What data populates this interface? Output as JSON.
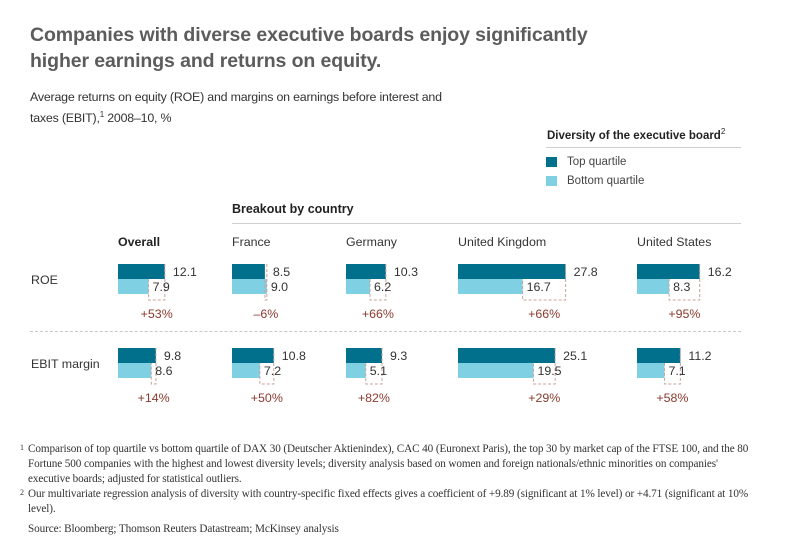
{
  "header": {
    "title": "Companies with diverse executive boards enjoy significantly higher earnings and returns on equity.",
    "subtitle_part1": "Average returns on equity (ROE) and margins on earnings before interest and taxes (EBIT),",
    "subtitle_sup": "1",
    "subtitle_part2": " 2008–10, %"
  },
  "legend": {
    "title": "Diversity of the executive board",
    "title_sup": "2",
    "items": [
      {
        "label": "Top quartile",
        "color": "#00708d"
      },
      {
        "label": "Bottom quartile",
        "color": "#7fd0e2"
      }
    ]
  },
  "breakout_title": "Breakout by country",
  "colors": {
    "top": "#00708d",
    "bottom": "#7fd0e2",
    "delta_text": "#8b3a2e",
    "delta_box": "#c9a39c",
    "value_text": "#333333"
  },
  "chart_data": {
    "type": "bar",
    "title": "Companies with diverse executive boards enjoy significantly higher earnings and returns on equity.",
    "subtitle": "Average returns on equity (ROE) and margins on earnings before interest and taxes (EBIT), 2008–10, %",
    "orientation": "horizontal",
    "categories": [
      "Overall",
      "France",
      "Germany",
      "United Kingdom",
      "United States"
    ],
    "metrics": [
      "ROE",
      "EBIT margin"
    ],
    "series": [
      {
        "name": "Top quartile",
        "metric": "ROE",
        "values": [
          12.1,
          8.5,
          10.3,
          27.8,
          16.2
        ]
      },
      {
        "name": "Bottom quartile",
        "metric": "ROE",
        "values": [
          7.9,
          9.0,
          6.2,
          16.7,
          8.3
        ]
      },
      {
        "name": "Top quartile",
        "metric": "EBIT margin",
        "values": [
          9.8,
          10.8,
          9.3,
          25.1,
          11.2
        ]
      },
      {
        "name": "Bottom quartile",
        "metric": "EBIT margin",
        "values": [
          8.6,
          7.2,
          5.1,
          19.5,
          7.1
        ]
      }
    ],
    "value_labels": {
      "ROE": {
        "top": [
          "12.1",
          "8.5",
          "10.3",
          "27.8",
          "16.2"
        ],
        "bottom": [
          "7.9",
          "9.0",
          "6.2",
          "16.7",
          "8.3"
        ]
      },
      "EBIT margin": {
        "top": [
          "9.8",
          "10.8",
          "9.3",
          "25.1",
          "11.2"
        ],
        "bottom": [
          "8.6",
          "7.2",
          "5.1",
          "19.5",
          "7.1"
        ]
      }
    },
    "differences": {
      "ROE": [
        "+53%",
        "–6%",
        "+66%",
        "+66%",
        "+95%"
      ],
      "EBIT margin": [
        "+14%",
        "+50%",
        "+82%",
        "+29%",
        "+58%"
      ]
    },
    "legend_position": "top-right",
    "grid": false
  },
  "columns": {
    "overall": "Overall",
    "france": "France",
    "germany": "Germany",
    "uk": "United Kingdom",
    "us": "United States"
  },
  "rows": {
    "roe": "ROE",
    "ebit": "EBIT margin"
  },
  "footnotes": [
    {
      "sup": "1",
      "text": "Comparison of top quartile vs bottom quartile of DAX 30 (Deutscher Aktienindex), CAC 40 (Euronext Paris), the top 30 by market cap of the FTSE 100, and the 80 Fortune 500 companies with the highest and lowest diversity levels; diversity analysis based on women and foreign nationals/ethnic minorities on companies' executive boards; adjusted for statistical outliers."
    },
    {
      "sup": "2",
      "text": "Our multivariate regression analysis of diversity with country-specific fixed effects gives a coefficient of +9.89 (significant at 1% level) or +4.71 (significant at 10% level)."
    }
  ],
  "source": "Source: Bloomberg; Thomson Reuters Datastream; McKinsey analysis"
}
